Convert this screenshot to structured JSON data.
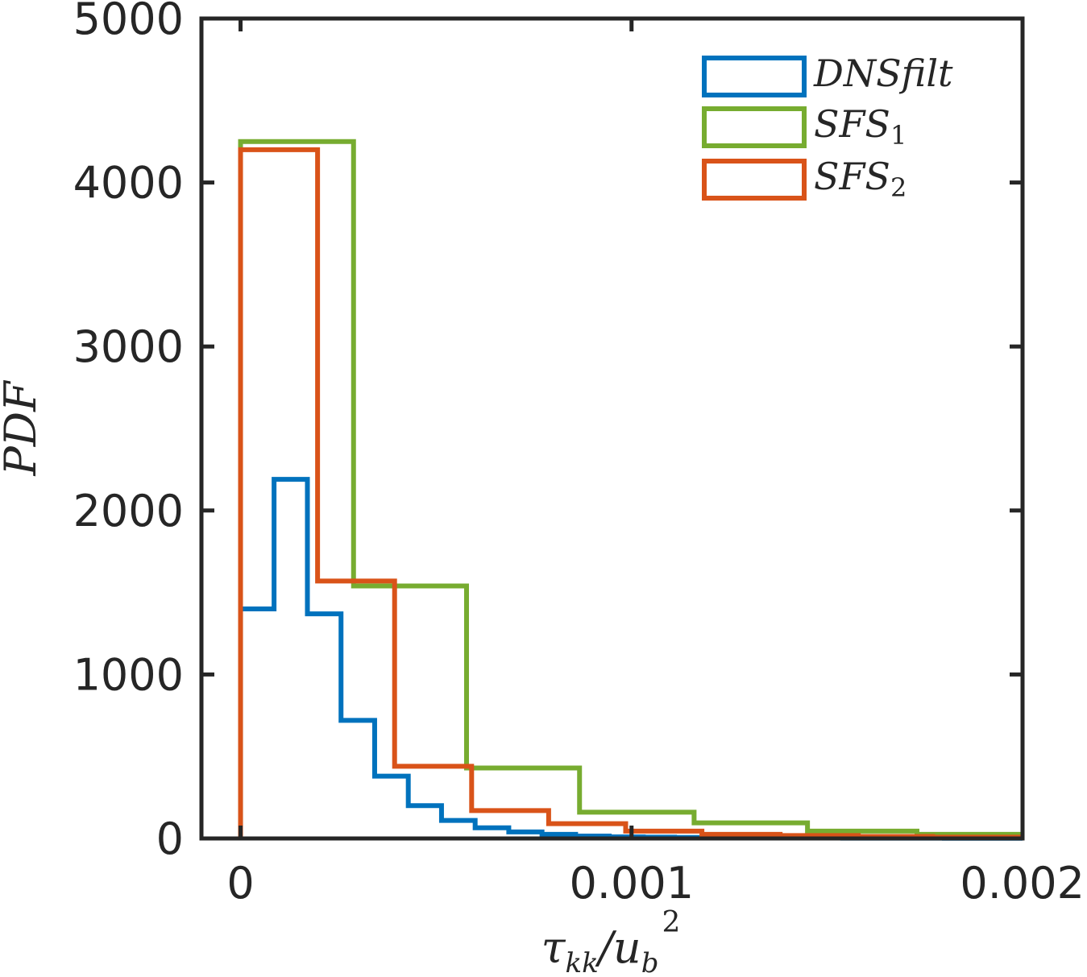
{
  "chart_data": {
    "type": "histogram",
    "title": "",
    "xlabel": {
      "base": "τ",
      "sub1": "kk",
      "mid": "/u",
      "sub2": "b",
      "sup": "2"
    },
    "ylabel": "PDF",
    "xlim": [
      -0.0001,
      0.002
    ],
    "ylim": [
      0,
      5000
    ],
    "x_ticks": [
      0,
      0.001,
      0.002
    ],
    "x_tick_labels": [
      "0",
      "0.001",
      "0.002"
    ],
    "y_ticks": [
      0,
      1000,
      2000,
      3000,
      4000,
      5000
    ],
    "y_tick_labels": [
      "0",
      "1000",
      "2000",
      "3000",
      "4000",
      "5000"
    ],
    "grid": false,
    "legend_position": "top-right",
    "series": [
      {
        "name": "DNSfilt",
        "legend_main": "DNSfilt",
        "legend_sub": "",
        "color": "#0072bd",
        "edges": [
          0,
          8.57e-05,
          0.000171,
          0.000257,
          0.000343,
          0.000429,
          0.000514,
          0.0006,
          0.000686,
          0.000771,
          0.000857,
          0.000943,
          0.00103,
          0.00111,
          0.0012,
          0.00129,
          0.00137,
          0.00146,
          0.00154,
          0.00163,
          0.00171,
          0.0018,
          0.00189,
          0.002
        ],
        "values": [
          1400,
          2190,
          1370,
          720,
          380,
          200,
          110,
          65,
          40,
          25,
          15,
          10,
          8,
          6,
          5,
          4,
          3,
          3,
          2,
          2,
          2,
          1,
          1
        ]
      },
      {
        "name": "SFS1",
        "legend_main": "SFS",
        "legend_sub": "1",
        "color": "#77ac30",
        "edges": [
          0,
          0.000289,
          0.000578,
          0.000867,
          0.00116,
          0.00145,
          0.00173,
          0.002
        ],
        "values": [
          4250,
          1540,
          430,
          160,
          95,
          45,
          25
        ]
      },
      {
        "name": "SFS2",
        "legend_main": "SFS",
        "legend_sub": "2",
        "color": "#d95319",
        "edges": [
          0,
          0.000197,
          0.000394,
          0.000591,
          0.000788,
          0.000985,
          0.00118,
          0.00138,
          0.00158,
          0.00177,
          0.002
        ],
        "values": [
          4200,
          1570,
          440,
          170,
          90,
          45,
          25,
          18,
          12,
          8
        ]
      }
    ]
  }
}
